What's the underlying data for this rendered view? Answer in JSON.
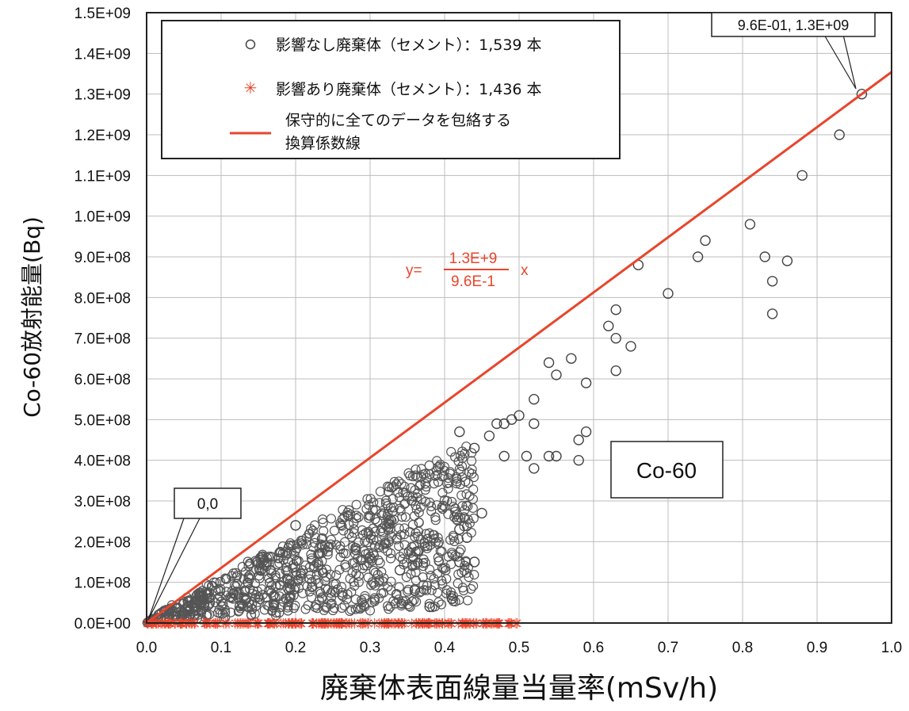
{
  "chart_data": {
    "type": "scatter",
    "xlabel": "廃棄体表面線量当量率(mSv/h)",
    "ylabel": "Co-60放射能量(Bq)",
    "xlim": [
      0,
      1.0
    ],
    "ylim": [
      0,
      1500000000
    ],
    "x_ticks": [
      "0.0",
      "0.1",
      "0.2",
      "0.3",
      "0.4",
      "0.5",
      "0.6",
      "0.7",
      "0.8",
      "0.9",
      "1.0"
    ],
    "y_ticks": [
      "0.0E+00",
      "1.0E+08",
      "2.0E+08",
      "3.0E+08",
      "4.0E+08",
      "5.0E+08",
      "6.0E+08",
      "7.0E+08",
      "8.0E+08",
      "9.0E+08",
      "1.0E+09",
      "1.1E+09",
      "1.2E+09",
      "1.3E+09",
      "1.4E+09",
      "1.5E+09"
    ],
    "grid": true,
    "legend": {
      "placement": "top-left",
      "entries": [
        {
          "label": "影響なし廃棄体（セメント）：1,539 本",
          "marker": "○",
          "color": "#444444"
        },
        {
          "label": "影響あり廃棄体（セメント）：1,436 本",
          "marker": "✳",
          "color": "#e8452c"
        },
        {
          "label_line1": "保守的に全てのデータを包絡する",
          "label_line2": "換算係数線",
          "marker": "line",
          "color": "#e8452c"
        }
      ]
    },
    "fit_line": {
      "slope": 1354166666.67,
      "x_end": 1.0
    },
    "equation": {
      "prefix": "y=",
      "numerator": "1.3E+9",
      "denominator": "9.6E-1",
      "suffix": "x"
    },
    "annotations": {
      "max_point": {
        "text": "9.6E-01, 1.3E+09",
        "x": 0.96,
        "y": 1300000000
      },
      "origin": {
        "text": "0,0",
        "x": 0,
        "y": 0
      },
      "nuclide_box": "Co-60"
    },
    "series": [
      {
        "name": "影響なし廃棄体（セメント）：1,539 本",
        "points": [
          [
            0.96,
            1300000000
          ],
          [
            0.93,
            1200000000
          ],
          [
            0.88,
            1100000000
          ],
          [
            0.81,
            980000000
          ],
          [
            0.75,
            940000000
          ],
          [
            0.74,
            900000000
          ],
          [
            0.66,
            880000000
          ],
          [
            0.83,
            900000000
          ],
          [
            0.86,
            890000000
          ],
          [
            0.84,
            840000000
          ],
          [
            0.7,
            810000000
          ],
          [
            0.84,
            760000000
          ],
          [
            0.63,
            770000000
          ],
          [
            0.62,
            730000000
          ],
          [
            0.63,
            700000000
          ],
          [
            0.65,
            680000000
          ],
          [
            0.57,
            650000000
          ],
          [
            0.54,
            640000000
          ],
          [
            0.63,
            620000000
          ],
          [
            0.55,
            610000000
          ],
          [
            0.59,
            590000000
          ],
          [
            0.52,
            550000000
          ],
          [
            0.5,
            510000000
          ],
          [
            0.49,
            500000000
          ],
          [
            0.47,
            490000000
          ],
          [
            0.48,
            490000000
          ],
          [
            0.52,
            490000000
          ],
          [
            0.59,
            470000000
          ],
          [
            0.46,
            460000000
          ],
          [
            0.58,
            450000000
          ],
          [
            0.42,
            470000000
          ],
          [
            0.44,
            430000000
          ],
          [
            0.48,
            410000000
          ],
          [
            0.51,
            410000000
          ],
          [
            0.54,
            410000000
          ],
          [
            0.55,
            410000000
          ],
          [
            0.58,
            400000000
          ],
          [
            0.52,
            380000000
          ],
          [
            0.2,
            240000000
          ],
          [
            0.45,
            270000000
          ],
          [
            0.42,
            230000000
          ],
          [
            0.43,
            210000000
          ],
          [
            0.42,
            150000000
          ],
          [
            0.44,
            150000000
          ],
          [
            0.41,
            60000000
          ],
          [
            0.38,
            40000000
          ],
          [
            0.36,
            80000000
          ],
          [
            0.34,
            130000000
          ]
        ]
      },
      {
        "name": "影響あり廃棄体（セメント）：1,436 本",
        "points": []
      }
    ]
  }
}
